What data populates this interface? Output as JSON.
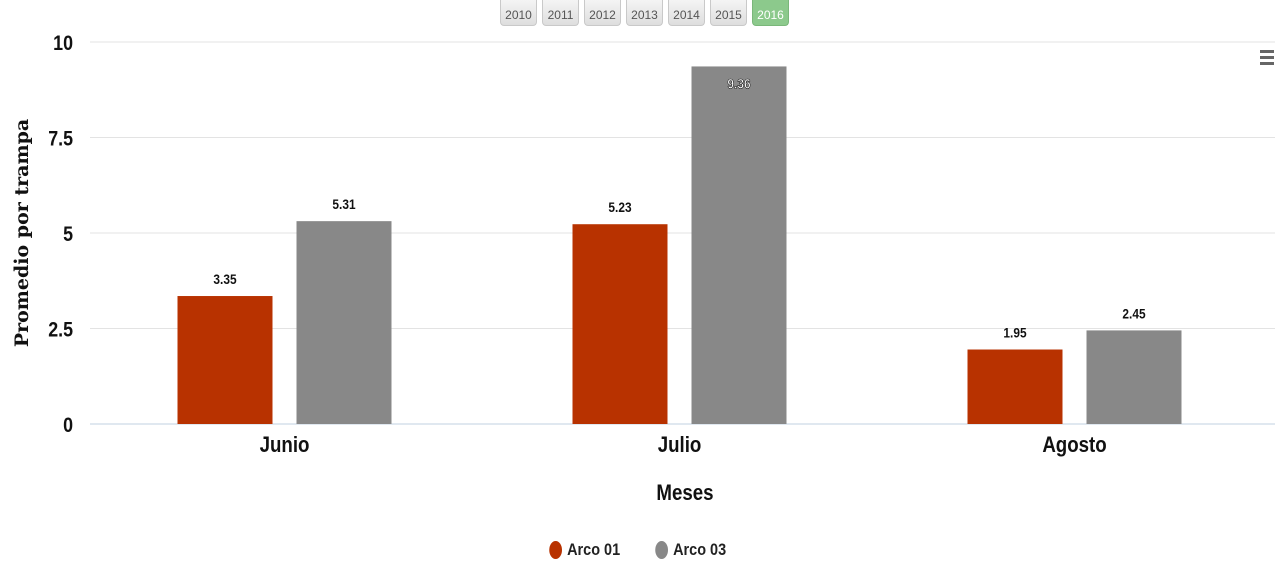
{
  "toolbar": {
    "year_buttons": [
      "2010",
      "2011",
      "2012",
      "2013",
      "2014",
      "2015",
      "2016"
    ],
    "active_index": 6
  },
  "chart_data": {
    "type": "bar",
    "categories": [
      "Junio",
      "Julio",
      "Agosto"
    ],
    "series": [
      {
        "name": "Arco 01",
        "color": "#b83200",
        "values": [
          3.35,
          5.23,
          1.95
        ]
      },
      {
        "name": "Arco 03",
        "color": "#888888",
        "values": [
          5.31,
          9.36,
          2.45
        ]
      }
    ],
    "xlabel": "Meses",
    "ylabel": "Promedio por trampa",
    "ylim": [
      0,
      10
    ],
    "yticks": [
      "0",
      "2.5",
      "5",
      "7.5",
      "10"
    ],
    "data_labels": [
      [
        "3.35",
        "5.23",
        "1.95"
      ],
      [
        "5.31",
        "9.36",
        "2.45"
      ]
    ],
    "grid": true,
    "legend_position": "bottom-center"
  },
  "legend": {
    "items": [
      {
        "label": "Arco 01",
        "color": "#b83200"
      },
      {
        "label": "Arco 03",
        "color": "#888888"
      }
    ]
  },
  "menu": {
    "icon": "hamburger-menu-icon"
  }
}
